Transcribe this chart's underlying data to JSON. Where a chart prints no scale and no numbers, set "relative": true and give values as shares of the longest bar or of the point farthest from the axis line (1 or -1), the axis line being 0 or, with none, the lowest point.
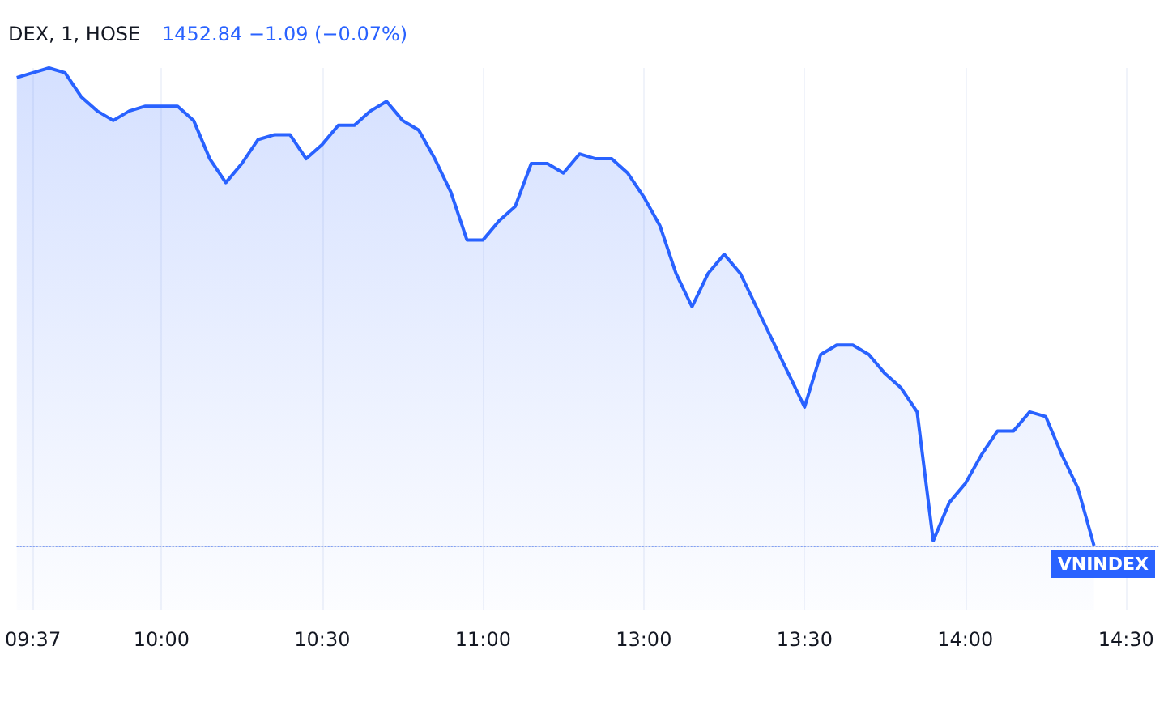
{
  "chart_data": {
    "type": "area",
    "title": "DEX, 1, HOSE",
    "subtitle": "1452.84 −1.09 (−0.07%)",
    "relative": true,
    "grid": "x",
    "categories": [
      null,
      "09:37",
      null,
      null,
      null,
      null,
      null,
      null,
      null,
      "10:00",
      null,
      null,
      null,
      null,
      null,
      null,
      null,
      null,
      null,
      "10:30",
      null,
      null,
      null,
      null,
      null,
      null,
      null,
      null,
      null,
      "11:00",
      null,
      null,
      null,
      null,
      null,
      null,
      null,
      null,
      null,
      "13:00",
      null,
      null,
      null,
      null,
      null,
      null,
      null,
      null,
      null,
      "13:30",
      null,
      null,
      null,
      null,
      null,
      null,
      null,
      null,
      null,
      "14:00",
      null,
      null,
      null,
      null,
      null,
      null,
      null,
      null,
      null,
      "14:30",
      null,
      null
    ],
    "series": [
      {
        "color": "#2962ff",
        "values": [
          0.98,
          0.99,
          1.0,
          0.99,
          0.94,
          0.91,
          0.89,
          0.91,
          0.92,
          0.92,
          0.92,
          0.89,
          0.81,
          0.76,
          0.8,
          0.85,
          0.86,
          0.86,
          0.81,
          0.84,
          0.88,
          0.88,
          0.91,
          0.93,
          0.89,
          0.87,
          0.81,
          0.74,
          0.64,
          0.64,
          0.68,
          0.71,
          0.8,
          0.8,
          0.78,
          0.82,
          0.81,
          0.81,
          0.78,
          0.73,
          0.67,
          0.57,
          0.5,
          0.57,
          0.61,
          0.57,
          0.5,
          0.43,
          0.36,
          0.29,
          0.4,
          0.42,
          0.42,
          0.4,
          0.36,
          0.33,
          0.28,
          0.01,
          0.09,
          0.13,
          0.19,
          0.24,
          0.24,
          0.28,
          0.27,
          0.19,
          0.12,
          0.0,
          null,
          null,
          null,
          null
        ]
      }
    ],
    "ref_lines": [
      {
        "axis": "y",
        "value": 0,
        "label": "VNINDEX",
        "color": "#2962ff",
        "line_style": "dotted"
      }
    ]
  }
}
